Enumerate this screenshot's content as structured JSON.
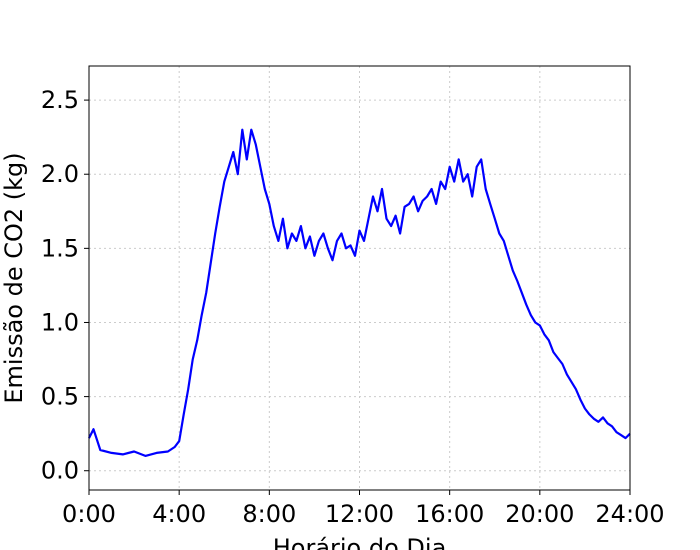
{
  "chart_data": {
    "type": "line",
    "xlabel": "Horário do Dia",
    "ylabel": "Emissão de CO2 (kg)",
    "xlim": [
      0,
      24
    ],
    "ylim": [
      -0.13,
      2.73
    ],
    "grid": true,
    "x_ticks": [
      {
        "value": 0,
        "label": "0:00"
      },
      {
        "value": 4,
        "label": "4:00"
      },
      {
        "value": 8,
        "label": "8:00"
      },
      {
        "value": 12,
        "label": "12:00"
      },
      {
        "value": 16,
        "label": "16:00"
      },
      {
        "value": 20,
        "label": "20:00"
      },
      {
        "value": 24,
        "label": "24:00"
      }
    ],
    "y_ticks": [
      {
        "value": 0.0,
        "label": "0.0"
      },
      {
        "value": 0.5,
        "label": "0.5"
      },
      {
        "value": 1.0,
        "label": "1.0"
      },
      {
        "value": 1.5,
        "label": "1.5"
      },
      {
        "value": 2.0,
        "label": "2.0"
      },
      {
        "value": 2.5,
        "label": "2.5"
      }
    ],
    "series": [
      {
        "color": "#0000ff",
        "x": [
          0.0,
          0.2,
          0.5,
          1.0,
          1.5,
          2.0,
          2.5,
          3.0,
          3.5,
          3.8,
          4.0,
          4.2,
          4.4,
          4.6,
          4.8,
          5.0,
          5.2,
          5.4,
          5.6,
          5.8,
          6.0,
          6.2,
          6.4,
          6.6,
          6.8,
          7.0,
          7.2,
          7.4,
          7.6,
          7.8,
          8.0,
          8.2,
          8.4,
          8.6,
          8.8,
          9.0,
          9.2,
          9.4,
          9.6,
          9.8,
          10.0,
          10.2,
          10.4,
          10.6,
          10.8,
          11.0,
          11.2,
          11.4,
          11.6,
          11.8,
          12.0,
          12.2,
          12.4,
          12.6,
          12.8,
          13.0,
          13.2,
          13.4,
          13.6,
          13.8,
          14.0,
          14.2,
          14.4,
          14.6,
          14.8,
          15.0,
          15.2,
          15.4,
          15.6,
          15.8,
          16.0,
          16.2,
          16.4,
          16.6,
          16.8,
          17.0,
          17.2,
          17.4,
          17.6,
          17.8,
          18.0,
          18.2,
          18.4,
          18.6,
          18.8,
          19.0,
          19.2,
          19.4,
          19.6,
          19.8,
          20.0,
          20.2,
          20.4,
          20.6,
          20.8,
          21.0,
          21.2,
          21.4,
          21.6,
          21.8,
          22.0,
          22.2,
          22.4,
          22.6,
          22.8,
          23.0,
          23.2,
          23.4,
          23.6,
          23.8,
          24.0
        ],
        "y": [
          0.22,
          0.28,
          0.14,
          0.12,
          0.11,
          0.13,
          0.1,
          0.12,
          0.13,
          0.16,
          0.2,
          0.38,
          0.55,
          0.75,
          0.88,
          1.05,
          1.2,
          1.4,
          1.6,
          1.78,
          1.95,
          2.05,
          2.15,
          2.0,
          2.3,
          2.1,
          2.3,
          2.2,
          2.05,
          1.9,
          1.8,
          1.65,
          1.55,
          1.7,
          1.5,
          1.6,
          1.55,
          1.65,
          1.5,
          1.58,
          1.45,
          1.55,
          1.6,
          1.5,
          1.42,
          1.55,
          1.6,
          1.5,
          1.52,
          1.45,
          1.62,
          1.55,
          1.7,
          1.85,
          1.75,
          1.9,
          1.7,
          1.65,
          1.72,
          1.6,
          1.78,
          1.8,
          1.85,
          1.75,
          1.82,
          1.85,
          1.9,
          1.8,
          1.95,
          1.9,
          2.05,
          1.95,
          2.1,
          1.95,
          2.0,
          1.85,
          2.05,
          2.1,
          1.9,
          1.8,
          1.7,
          1.6,
          1.55,
          1.45,
          1.35,
          1.28,
          1.2,
          1.12,
          1.05,
          1.0,
          0.98,
          0.92,
          0.88,
          0.8,
          0.76,
          0.72,
          0.65,
          0.6,
          0.55,
          0.48,
          0.42,
          0.38,
          0.35,
          0.33,
          0.36,
          0.32,
          0.3,
          0.26,
          0.24,
          0.22,
          0.25
        ]
      }
    ]
  }
}
